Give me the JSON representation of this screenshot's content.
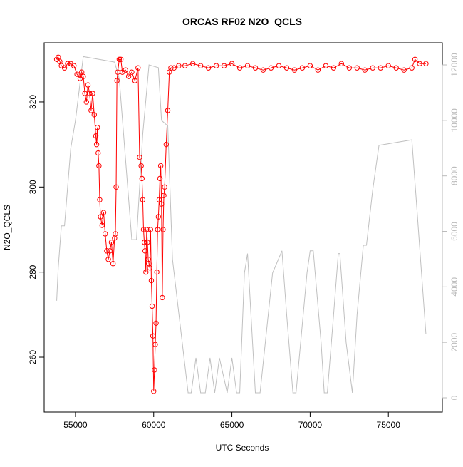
{
  "chart_data": {
    "type": "line",
    "title": "ORCAS RF02 N2O_QCLS",
    "xlabel": "UTC Seconds",
    "ylabel": "N2O_QCLS",
    "xlim": [
      53000,
      78450
    ],
    "xticks": [
      55000,
      60000,
      65000,
      70000,
      75000
    ],
    "ylim": [
      247.1,
      333.9
    ],
    "yticks": [
      260,
      280,
      300,
      320
    ],
    "y2lim": [
      -514,
      12797
    ],
    "y2ticks": [
      0,
      2000,
      4000,
      6000,
      8000,
      10000,
      12000
    ],
    "series": [
      {
        "color": "#ff0000",
        "markers": true,
        "x": [
          53800,
          53900,
          54000,
          54100,
          54300,
          54500,
          54700,
          54900,
          55100,
          55300,
          55400,
          55500,
          55600,
          55700,
          55800,
          55900,
          56000,
          56100,
          56200,
          56300,
          56350,
          56400,
          56450,
          56500,
          56550,
          56600,
          56700,
          56800,
          56900,
          57000,
          57100,
          57200,
          57300,
          57400,
          57500,
          57550,
          57600,
          57650,
          57700,
          57800,
          57900,
          58000,
          58200,
          58400,
          58600,
          58800,
          59000,
          59100,
          59200,
          59250,
          59300,
          59350,
          59400,
          59450,
          59500,
          59550,
          59600,
          59650,
          59700,
          59750,
          59800,
          59850,
          59900,
          59950,
          60000,
          60050,
          60100,
          60150,
          60200,
          60250,
          60300,
          60350,
          60400,
          60450,
          60500,
          60550,
          60600,
          60650,
          60700,
          60800,
          60900,
          61000,
          61100,
          61300,
          61600,
          62000,
          62500,
          63000,
          63500,
          64000,
          64500,
          65000,
          65500,
          66000,
          66500,
          67000,
          67500,
          68000,
          68500,
          69000,
          69500,
          70000,
          70500,
          71000,
          71500,
          72000,
          72500,
          73000,
          73500,
          74000,
          74500,
          75000,
          75500,
          76000,
          76500,
          76700,
          77000,
          77400
        ],
        "values": [
          330,
          330.5,
          329.5,
          328.5,
          328,
          329,
          329,
          328.5,
          326.5,
          325.5,
          327,
          326,
          322,
          320,
          324,
          322,
          318,
          322,
          317,
          312,
          310,
          314,
          308,
          305,
          297,
          293,
          291,
          294,
          289,
          285,
          283,
          285,
          287,
          282,
          288,
          289,
          300,
          325,
          327,
          330,
          330,
          327,
          327.5,
          326,
          327,
          325,
          328,
          307,
          305,
          302,
          297,
          290,
          287,
          285,
          280,
          290,
          287,
          283,
          282,
          281,
          290,
          278,
          272,
          265,
          252,
          257,
          263,
          268,
          280,
          290,
          293,
          297,
          302,
          305,
          296,
          274,
          290,
          298,
          300,
          310,
          318,
          327,
          328,
          328,
          328.5,
          328.5,
          329,
          328.5,
          328,
          328.5,
          328.5,
          329,
          328,
          328.5,
          328,
          327.5,
          328,
          328.5,
          328,
          327.5,
          328,
          328.5,
          327.5,
          328.5,
          328,
          329,
          328,
          328,
          327.5,
          328,
          328,
          328.5,
          328,
          327.5,
          328,
          330,
          329,
          329
        ]
      },
      {
        "color": "#c0c0c0",
        "axis": "y2",
        "markers": false,
        "x": [
          53800,
          53900,
          54100,
          54300,
          54700,
          55000,
          55500,
          57500,
          57800,
          58600,
          58900,
          59300,
          59700,
          60300,
          60500,
          60900,
          61200,
          62200,
          62400,
          62700,
          63000,
          63300,
          63600,
          63900,
          64200,
          64700,
          65000,
          65300,
          65500,
          65800,
          66000,
          66500,
          66800,
          67600,
          68200,
          68500,
          68900,
          69100,
          69800,
          70000,
          70200,
          70700,
          70900,
          71100,
          71500,
          71800,
          71900,
          72300,
          72700,
          73000,
          73400,
          73600,
          74000,
          74400,
          76500,
          76800,
          77400
        ],
        "values": [
          3500,
          4700,
          6200,
          6200,
          9000,
          10000,
          12300,
          12100,
          11500,
          5700,
          5700,
          9500,
          12000,
          11900,
          10000,
          9800,
          5000,
          180,
          180,
          1440,
          180,
          180,
          1440,
          180,
          1440,
          180,
          1440,
          180,
          180,
          4500,
          5200,
          180,
          180,
          4500,
          5300,
          3000,
          180,
          180,
          4500,
          5300,
          5300,
          2000,
          180,
          180,
          3000,
          5200,
          5200,
          2000,
          180,
          3000,
          5500,
          5500,
          7500,
          9100,
          9300,
          7000,
          2300
        ]
      }
    ]
  }
}
